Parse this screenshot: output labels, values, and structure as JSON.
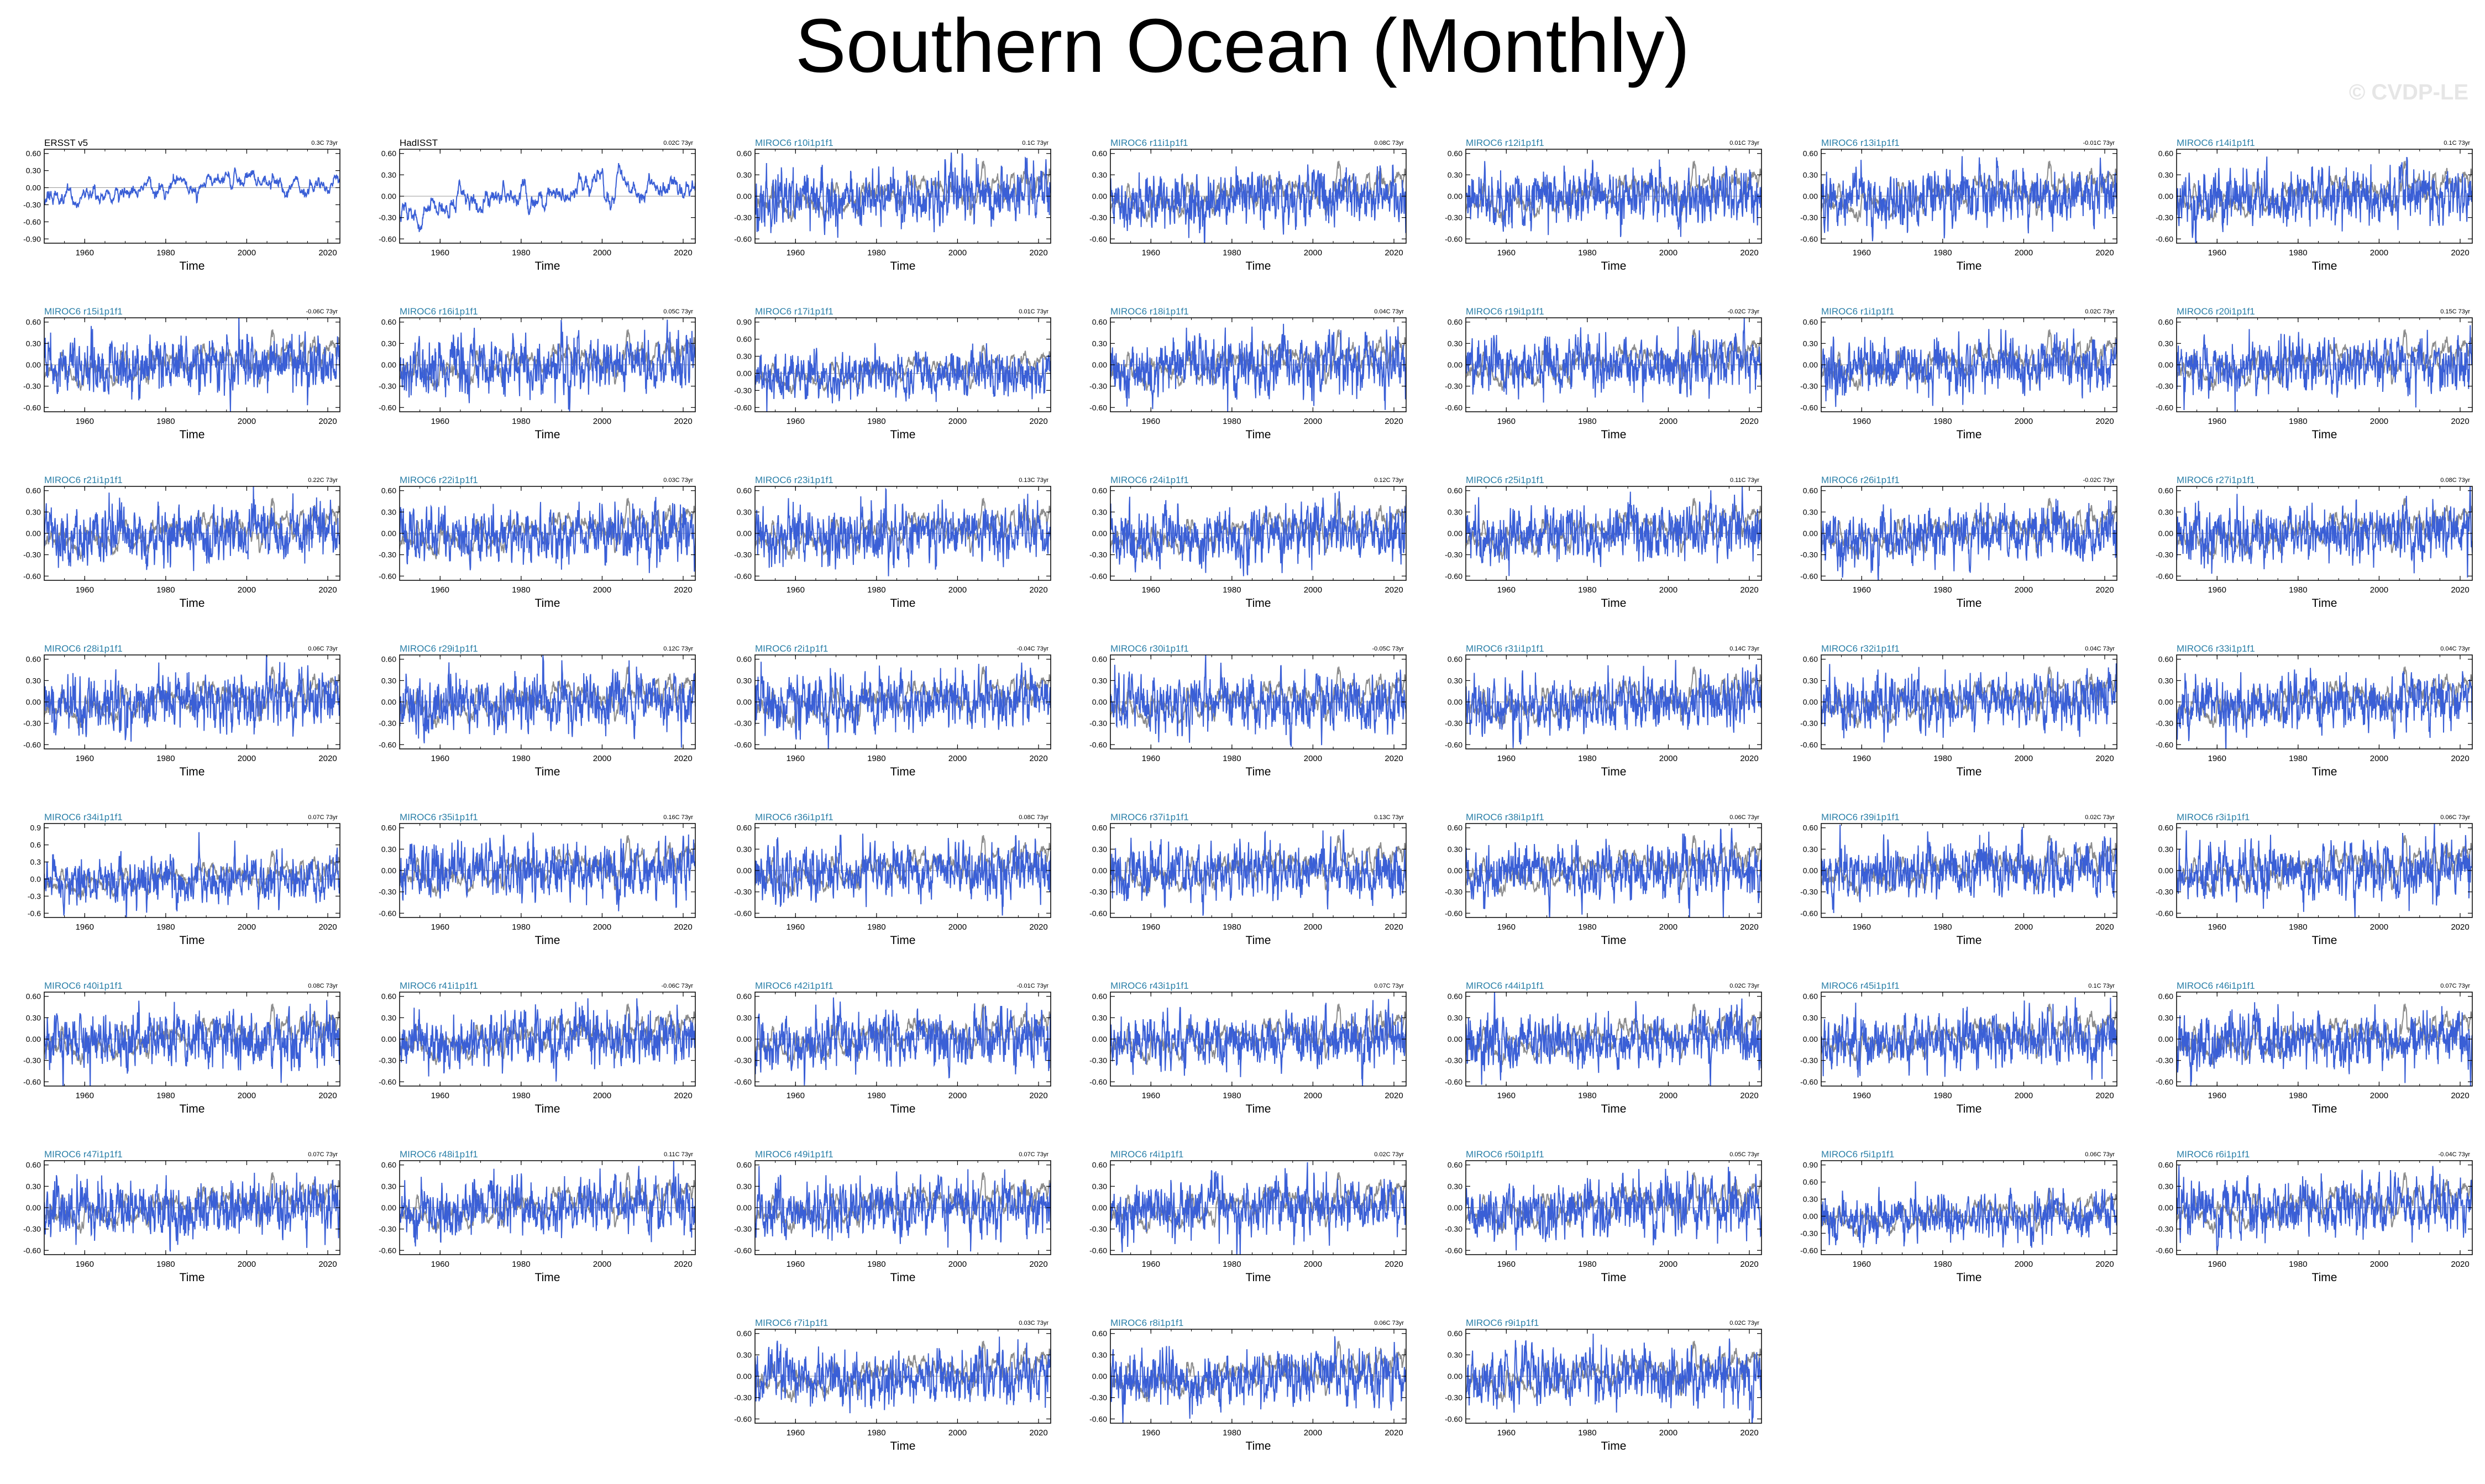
{
  "title": "Southern Ocean (Monthly)",
  "watermark": "© CVDP-LE",
  "colors": {
    "model": "#3a5fd6",
    "obs": "#8c8c8c",
    "title_model": "#2a7fa8",
    "title_obs": "#000000"
  },
  "chart_data": {
    "type": "line",
    "xlabel": "Time",
    "xlim": [
      1950,
      2023
    ],
    "x_ticks": [
      "1960",
      "1980",
      "2000",
      "2020"
    ],
    "y_ticks_default": [
      "0.60",
      "0.30",
      "0.00",
      "-0.30",
      "-0.60"
    ],
    "series": [
      {
        "name": "ERSST v5",
        "trend": "0.3C 73yr",
        "obs": true,
        "y_ticks": [
          "0.60",
          "0.30",
          "0.00",
          "-0.30",
          "-0.60",
          "-0.90"
        ]
      },
      {
        "name": "HadISST",
        "trend": "0.02C 73yr",
        "obs": true
      },
      {
        "name": "MIROC6 r10i1p1f1",
        "trend": "0.1C 73yr"
      },
      {
        "name": "MIROC6 r11i1p1f1",
        "trend": "0.08C 73yr"
      },
      {
        "name": "MIROC6 r12i1p1f1",
        "trend": "0.01C 73yr"
      },
      {
        "name": "MIROC6 r13i1p1f1",
        "trend": "-0.01C 73yr"
      },
      {
        "name": "MIROC6 r14i1p1f1",
        "trend": "0.1C 73yr"
      },
      {
        "name": "MIROC6 r15i1p1f1",
        "trend": "-0.06C 73yr"
      },
      {
        "name": "MIROC6 r16i1p1f1",
        "trend": "0.05C 73yr"
      },
      {
        "name": "MIROC6 r17i1p1f1",
        "trend": "0.01C 73yr",
        "y_ticks": [
          "0.90",
          "0.60",
          "0.30",
          "0.00",
          "-0.30",
          "-0.60"
        ]
      },
      {
        "name": "MIROC6 r18i1p1f1",
        "trend": "0.04C 73yr"
      },
      {
        "name": "MIROC6 r19i1p1f1",
        "trend": "-0.02C 73yr"
      },
      {
        "name": "MIROC6 r1i1p1f1",
        "trend": "0.02C 73yr"
      },
      {
        "name": "MIROC6 r20i1p1f1",
        "trend": "0.15C 73yr"
      },
      {
        "name": "MIROC6 r21i1p1f1",
        "trend": "0.22C 73yr"
      },
      {
        "name": "MIROC6 r22i1p1f1",
        "trend": "0.03C 73yr"
      },
      {
        "name": "MIROC6 r23i1p1f1",
        "trend": "0.13C 73yr"
      },
      {
        "name": "MIROC6 r24i1p1f1",
        "trend": "0.12C 73yr"
      },
      {
        "name": "MIROC6 r25i1p1f1",
        "trend": "0.11C 73yr"
      },
      {
        "name": "MIROC6 r26i1p1f1",
        "trend": "-0.02C 73yr"
      },
      {
        "name": "MIROC6 r27i1p1f1",
        "trend": "0.08C 73yr"
      },
      {
        "name": "MIROC6 r28i1p1f1",
        "trend": "0.06C 73yr"
      },
      {
        "name": "MIROC6 r29i1p1f1",
        "trend": "0.12C 73yr"
      },
      {
        "name": "MIROC6 r2i1p1f1",
        "trend": "-0.04C 73yr"
      },
      {
        "name": "MIROC6 r30i1p1f1",
        "trend": "-0.05C 73yr"
      },
      {
        "name": "MIROC6 r31i1p1f1",
        "trend": "0.14C 73yr"
      },
      {
        "name": "MIROC6 r32i1p1f1",
        "trend": "0.04C 73yr"
      },
      {
        "name": "MIROC6 r33i1p1f1",
        "trend": "0.04C 73yr"
      },
      {
        "name": "MIROC6 r34i1p1f1",
        "trend": "0.07C 73yr",
        "y_ticks": [
          "0.9",
          "0.6",
          "0.3",
          "0.0",
          "-0.3",
          "-0.6"
        ]
      },
      {
        "name": "MIROC6 r35i1p1f1",
        "trend": "0.16C 73yr"
      },
      {
        "name": "MIROC6 r36i1p1f1",
        "trend": "0.08C 73yr"
      },
      {
        "name": "MIROC6 r37i1p1f1",
        "trend": "0.13C 73yr"
      },
      {
        "name": "MIROC6 r38i1p1f1",
        "trend": "0.06C 73yr"
      },
      {
        "name": "MIROC6 r39i1p1f1",
        "trend": "0.02C 73yr"
      },
      {
        "name": "MIROC6 r3i1p1f1",
        "trend": "0.06C 73yr"
      },
      {
        "name": "MIROC6 r40i1p1f1",
        "trend": "0.08C 73yr"
      },
      {
        "name": "MIROC6 r41i1p1f1",
        "trend": "-0.06C 73yr"
      },
      {
        "name": "MIROC6 r42i1p1f1",
        "trend": "-0.01C 73yr"
      },
      {
        "name": "MIROC6 r43i1p1f1",
        "trend": "0.07C 73yr"
      },
      {
        "name": "MIROC6 r44i1p1f1",
        "trend": "0.02C 73yr"
      },
      {
        "name": "MIROC6 r45i1p1f1",
        "trend": "0.1C 73yr"
      },
      {
        "name": "MIROC6 r46i1p1f1",
        "trend": "0.07C 73yr"
      },
      {
        "name": "MIROC6 r47i1p1f1",
        "trend": "0.07C 73yr"
      },
      {
        "name": "MIROC6 r48i1p1f1",
        "trend": "0.11C 73yr"
      },
      {
        "name": "MIROC6 r49i1p1f1",
        "trend": "0.07C 73yr"
      },
      {
        "name": "MIROC6 r4i1p1f1",
        "trend": "0.02C 73yr"
      },
      {
        "name": "MIROC6 r50i1p1f1",
        "trend": "0.05C 73yr"
      },
      {
        "name": "MIROC6 r5i1p1f1",
        "trend": "0.06C 73yr",
        "y_ticks": [
          "0.90",
          "0.60",
          "0.30",
          "0.00",
          "-0.30",
          "-0.60"
        ]
      },
      {
        "name": "MIROC6 r6i1p1f1",
        "trend": "-0.04C 73yr"
      },
      {
        "name": "MIROC6 r7i1p1f1",
        "trend": "0.03C 73yr"
      },
      {
        "name": "MIROC6 r8i1p1f1",
        "trend": "0.06C 73yr"
      },
      {
        "name": "MIROC6 r9i1p1f1",
        "trend": "0.02C 73yr"
      }
    ]
  }
}
